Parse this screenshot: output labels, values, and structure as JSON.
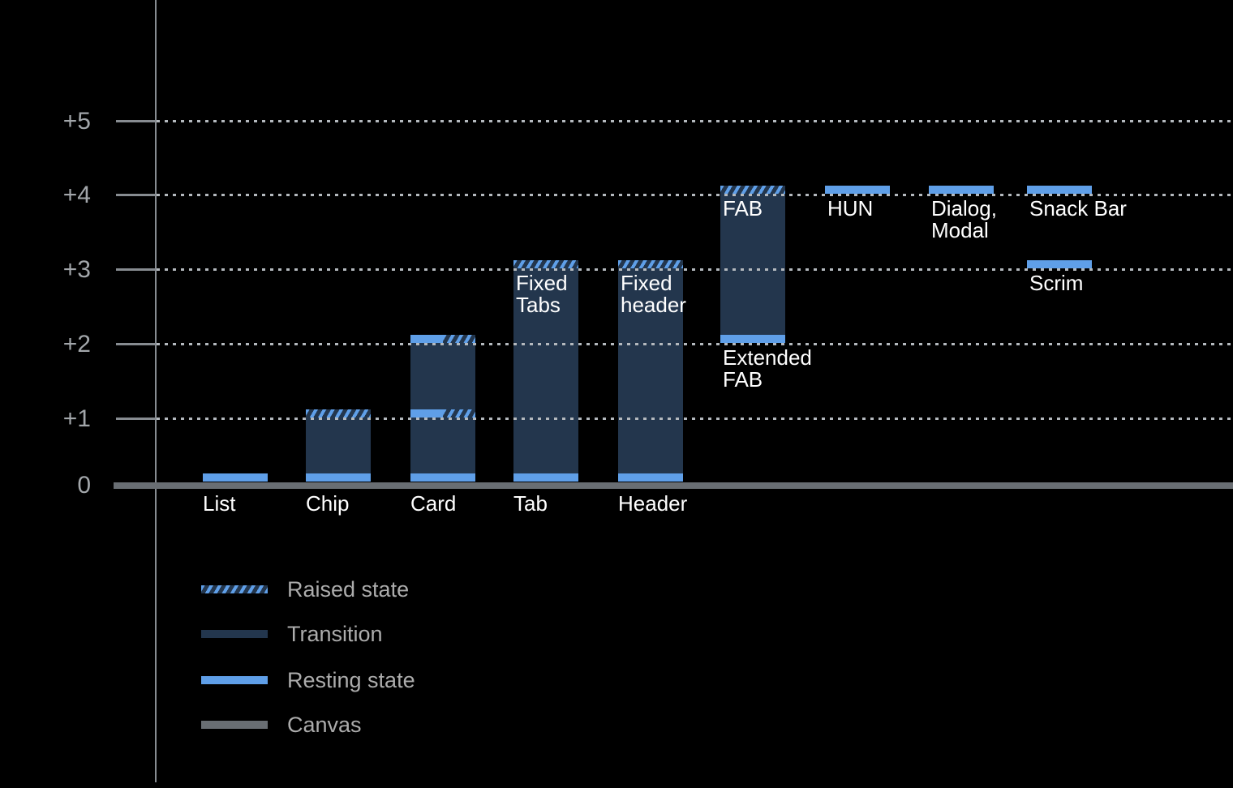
{
  "chart_data": {
    "type": "bar",
    "title": "",
    "subtitle": "",
    "description": "Elevation diagram of UI components: resting state, raised state and transition ranges on a 0 to +5 elevation scale above the canvas.",
    "y_axis": {
      "ticks": [
        {
          "label": "+5",
          "value": 5
        },
        {
          "label": "+4",
          "value": 4
        },
        {
          "label": "+3",
          "value": 3
        },
        {
          "label": "+2",
          "value": 2
        },
        {
          "label": "+1",
          "value": 1
        },
        {
          "label": "0",
          "value": 0
        }
      ],
      "ylim": [
        0,
        5
      ],
      "gridlines": "dotted horizontal lines at +1 through +5"
    },
    "components": [
      {
        "name": "List",
        "col": 0,
        "resting": 0,
        "raised": null,
        "bands": [
          {
            "level": 0,
            "fill": "resting"
          }
        ],
        "labels": [
          {
            "text": [
              "List"
            ],
            "placement": "axis"
          }
        ]
      },
      {
        "name": "Chip",
        "col": 1,
        "resting": 0,
        "raised": 1,
        "transition": [
          0,
          1
        ],
        "bands": [
          {
            "level": 0,
            "fill": "resting"
          },
          {
            "level": 1,
            "fill": "raised"
          }
        ],
        "labels": [
          {
            "text": [
              "Chip"
            ],
            "placement": "axis"
          }
        ]
      },
      {
        "name": "Card",
        "col": 2,
        "resting": 0,
        "raised": 2,
        "transition": [
          0,
          2
        ],
        "bands": [
          {
            "level": 0,
            "fill": "resting"
          },
          {
            "level": 1,
            "fill": "split"
          },
          {
            "level": 2,
            "fill": "split"
          }
        ],
        "labels": [
          {
            "text": [
              "Card"
            ],
            "placement": "axis"
          }
        ]
      },
      {
        "name": "Tab",
        "col": 3,
        "resting": 0,
        "raised": 3,
        "transition": [
          0,
          3
        ],
        "bands": [
          {
            "level": 0,
            "fill": "resting"
          },
          {
            "level": 3,
            "fill": "raised"
          }
        ],
        "labels": [
          {
            "text": [
              "Tab"
            ],
            "placement": "axis"
          },
          {
            "text": [
              "Fixed",
              "Tabs"
            ],
            "placement": "bar",
            "level": 3
          }
        ]
      },
      {
        "name": "Header",
        "col": 4,
        "resting": 0,
        "raised": 3,
        "transition": [
          0,
          3
        ],
        "bands": [
          {
            "level": 0,
            "fill": "resting"
          },
          {
            "level": 3,
            "fill": "raised"
          }
        ],
        "labels": [
          {
            "text": [
              "Header"
            ],
            "placement": "axis"
          },
          {
            "text": [
              "Fixed",
              "header"
            ],
            "placement": "bar",
            "level": 3
          }
        ]
      },
      {
        "name": "FAB",
        "col": 5,
        "resting": 2,
        "raised": 4,
        "transition": [
          2,
          4
        ],
        "bands": [
          {
            "level": 2,
            "fill": "resting"
          },
          {
            "level": 4,
            "fill": "raised"
          }
        ],
        "labels": [
          {
            "text": [
              "FAB"
            ],
            "placement": "bar",
            "level": 4
          },
          {
            "text": [
              "Extended",
              "FAB"
            ],
            "placement": "bar",
            "level": 2
          }
        ]
      },
      {
        "name": "HUN",
        "col": 6,
        "resting": 4,
        "raised": null,
        "bands": [
          {
            "level": 4,
            "fill": "resting"
          }
        ],
        "labels": [
          {
            "text": [
              "HUN"
            ],
            "placement": "bar",
            "level": 4
          }
        ]
      },
      {
        "name": "Dialog, Modal",
        "col": 7,
        "resting": 4,
        "raised": null,
        "bands": [
          {
            "level": 4,
            "fill": "resting"
          }
        ],
        "labels": [
          {
            "text": [
              "Dialog,",
              "Modal"
            ],
            "placement": "bar",
            "level": 4
          }
        ]
      },
      {
        "name": "Snack Bar",
        "col": 8,
        "resting": 4,
        "raised": null,
        "bands": [
          {
            "level": 4,
            "fill": "resting"
          }
        ],
        "labels": [
          {
            "text": [
              "Snack Bar"
            ],
            "placement": "bar",
            "level": 4
          }
        ]
      },
      {
        "name": "Scrim",
        "col": 8,
        "resting": 3,
        "raised": null,
        "bands": [
          {
            "level": 3,
            "fill": "resting"
          }
        ],
        "labels": [
          {
            "text": [
              "Scrim"
            ],
            "placement": "bar",
            "level": 3
          }
        ]
      }
    ],
    "legend": [
      {
        "label": "Raised state",
        "swatch": "hatched"
      },
      {
        "label": "Transition",
        "swatch": "transition"
      },
      {
        "label": "Resting state",
        "swatch": "resting"
      },
      {
        "label": "Canvas",
        "swatch": "canvas"
      }
    ],
    "legend_position": "bottom-left",
    "colors": {
      "background": "#000000",
      "resting_blue": "#5F9FE8",
      "transition_navy": "#23364D",
      "canvas_gray": "#696E73",
      "grid_dots": "#B4B9BE",
      "axis_line": "#878C91",
      "tick_text": "#A2A6AA",
      "legend_text": "#ACACAC",
      "bar_label_text": "#FFFFFF"
    }
  }
}
